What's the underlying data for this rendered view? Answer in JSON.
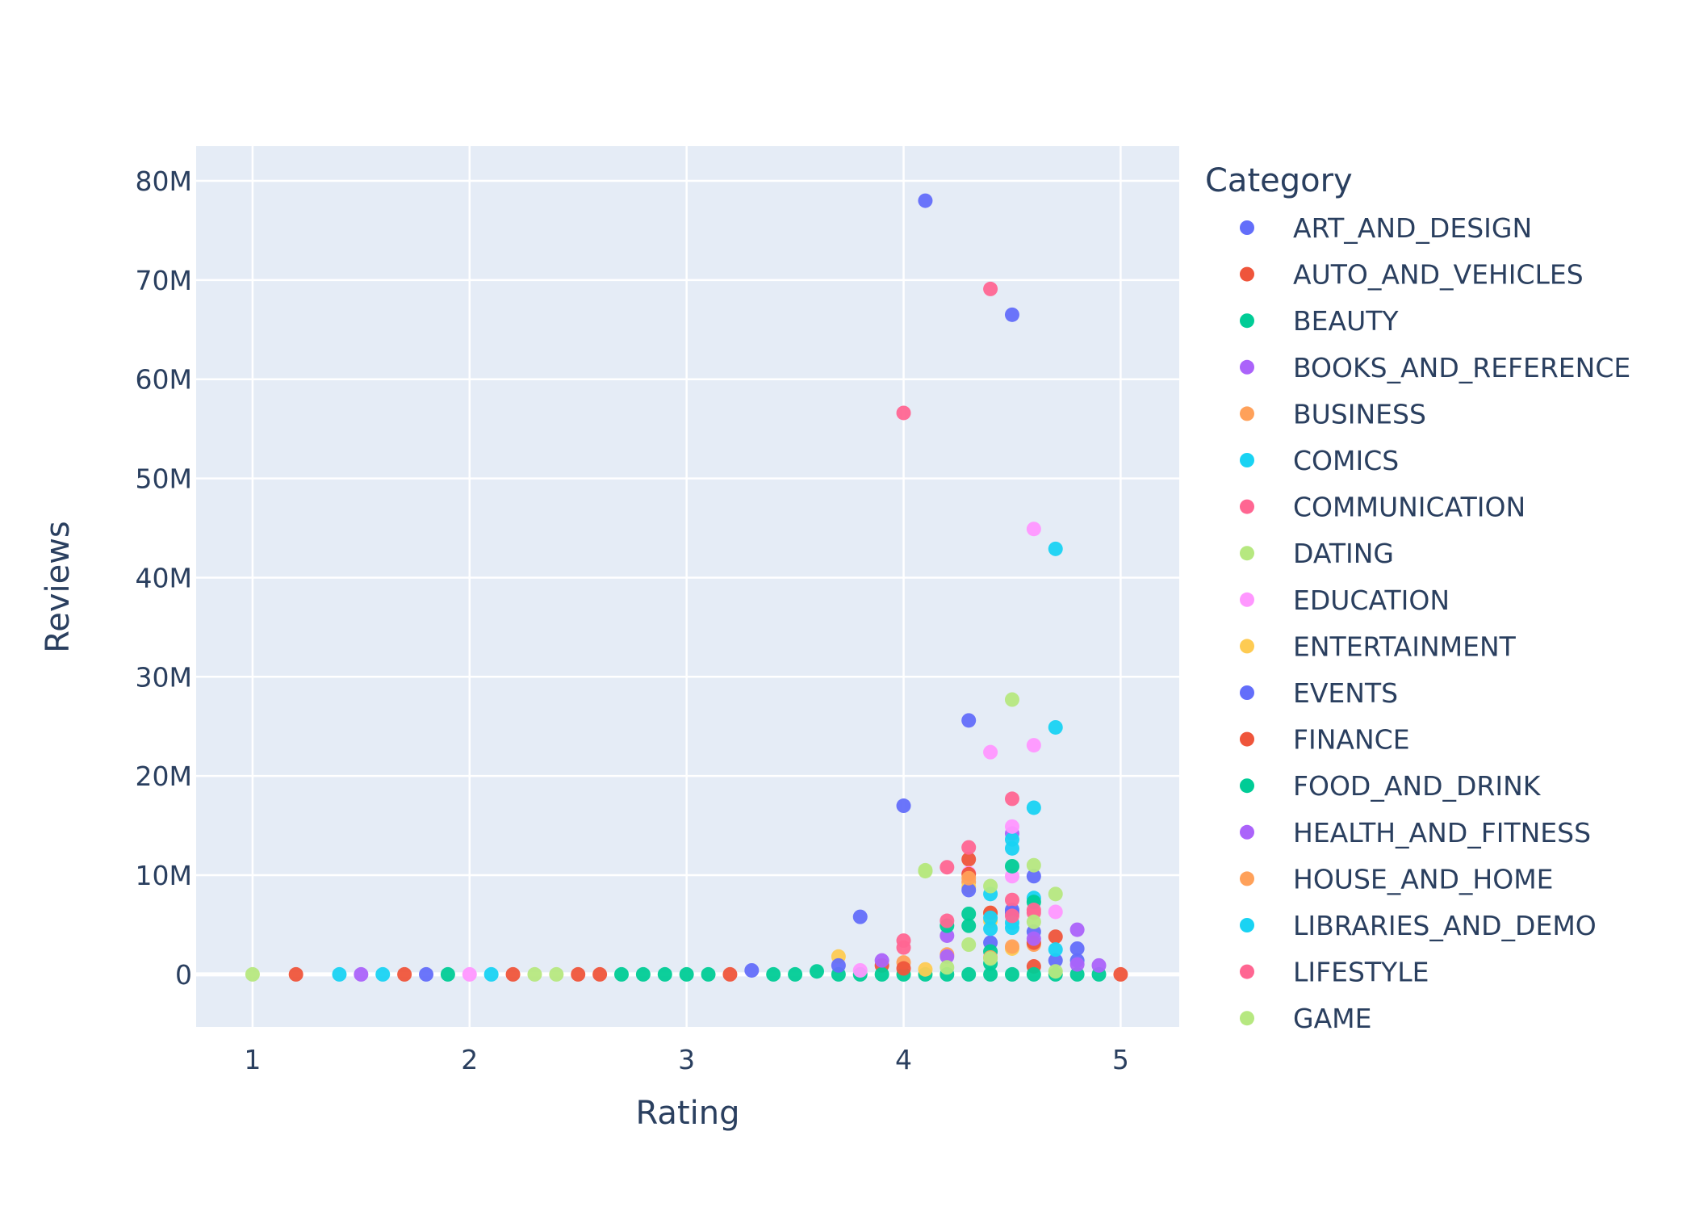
{
  "chart_data": {
    "type": "scatter",
    "xlabel": "Rating",
    "ylabel": "Reviews",
    "xlim": [
      0.74,
      5.27
    ],
    "ylim": [
      -5300000,
      83500000
    ],
    "x_ticks": [
      1,
      2,
      3,
      4,
      5
    ],
    "x_tick_labels": [
      "1",
      "2",
      "3",
      "4",
      "5"
    ],
    "y_ticks": [
      0,
      10000000,
      20000000,
      30000000,
      40000000,
      50000000,
      60000000,
      70000000,
      80000000
    ],
    "y_tick_labels": [
      "0",
      "10M",
      "20M",
      "30M",
      "40M",
      "50M",
      "60M",
      "70M",
      "80M"
    ],
    "grid": true,
    "plot_background": "#e5ecf6",
    "legend": {
      "title": "Category",
      "placement": "right"
    },
    "series": [
      {
        "name": "ART_AND_DESIGN",
        "color": "#636efa",
        "points": [
          [
            4.1,
            78000000
          ],
          [
            4.5,
            66500000
          ],
          [
            4.3,
            25600000
          ],
          [
            4.0,
            17000000
          ],
          [
            3.8,
            5800000
          ],
          [
            4.6,
            9900000
          ],
          [
            4.5,
            6500000
          ],
          [
            4.8,
            2600000
          ],
          [
            3.3,
            400000
          ],
          [
            1.8,
            0
          ],
          [
            4.4,
            3200000
          ],
          [
            4.7,
            1400000
          ]
        ]
      },
      {
        "name": "AUTO_AND_VEHICLES",
        "color": "#ef553b",
        "points": [
          [
            1.2,
            0
          ],
          [
            1.7,
            0
          ],
          [
            2.2,
            0
          ],
          [
            2.5,
            0
          ],
          [
            2.6,
            0
          ],
          [
            3.2,
            0
          ],
          [
            3.9,
            900000
          ],
          [
            4.3,
            11600000
          ],
          [
            4.7,
            3800000
          ],
          [
            5.0,
            0
          ],
          [
            4.6,
            800000
          ]
        ]
      },
      {
        "name": "BEAUTY",
        "color": "#00cc96",
        "points": [
          [
            1.9,
            0
          ],
          [
            2.7,
            0
          ],
          [
            2.8,
            0
          ],
          [
            2.9,
            0
          ],
          [
            3.0,
            0
          ],
          [
            3.1,
            0
          ],
          [
            3.4,
            0
          ],
          [
            3.5,
            0
          ],
          [
            3.6,
            300000
          ],
          [
            3.7,
            0
          ],
          [
            3.8,
            0
          ],
          [
            3.9,
            0
          ],
          [
            4.0,
            0
          ],
          [
            4.1,
            0
          ],
          [
            4.2,
            0
          ],
          [
            4.3,
            0
          ],
          [
            4.4,
            0
          ],
          [
            4.5,
            0
          ],
          [
            4.6,
            0
          ],
          [
            4.7,
            0
          ],
          [
            4.8,
            0
          ],
          [
            4.9,
            0
          ]
        ]
      },
      {
        "name": "BOOKS_AND_REFERENCE",
        "color": "#ab63fa",
        "points": [
          [
            1.5,
            0
          ],
          [
            3.9,
            1400000
          ],
          [
            4.2,
            3900000
          ],
          [
            4.5,
            14200000
          ],
          [
            4.8,
            4500000
          ],
          [
            4.9,
            900000
          ]
        ]
      },
      {
        "name": "BUSINESS",
        "color": "#ffa15a",
        "points": [
          [
            4.0,
            1200000
          ],
          [
            4.3,
            9300000
          ],
          [
            4.4,
            6200000
          ],
          [
            4.6,
            3000000
          ],
          [
            4.2,
            2000000
          ]
        ]
      },
      {
        "name": "COMICS",
        "color": "#19d3f3",
        "points": [
          [
            1.4,
            0
          ],
          [
            1.6,
            0
          ],
          [
            2.1,
            0
          ],
          [
            4.7,
            42900000
          ],
          [
            4.7,
            24900000
          ],
          [
            4.6,
            16800000
          ],
          [
            4.5,
            13600000
          ],
          [
            4.4,
            8100000
          ],
          [
            4.6,
            7700000
          ],
          [
            4.5,
            4700000
          ]
        ]
      },
      {
        "name": "COMMUNICATION",
        "color": "#ff6692",
        "points": [
          [
            4.4,
            69100000
          ],
          [
            4.0,
            56600000
          ],
          [
            4.5,
            17700000
          ],
          [
            4.3,
            12800000
          ],
          [
            4.2,
            10800000
          ],
          [
            4.0,
            3400000
          ],
          [
            4.5,
            7500000
          ],
          [
            4.6,
            6200000
          ]
        ]
      },
      {
        "name": "DATING",
        "color": "#b6e880",
        "points": [
          [
            1.0,
            0
          ],
          [
            2.3,
            0
          ],
          [
            2.4,
            0
          ],
          [
            4.5,
            27700000
          ],
          [
            4.1,
            10500000
          ],
          [
            4.6,
            11000000
          ],
          [
            4.7,
            8100000
          ],
          [
            4.4,
            8900000
          ],
          [
            4.3,
            3000000
          ]
        ]
      },
      {
        "name": "EDUCATION",
        "color": "#ff97ff",
        "points": [
          [
            2.0,
            0
          ],
          [
            4.6,
            44900000
          ],
          [
            4.6,
            23100000
          ],
          [
            4.4,
            22400000
          ],
          [
            4.5,
            14900000
          ],
          [
            4.5,
            9900000
          ],
          [
            4.7,
            6300000
          ],
          [
            4.3,
            10200000
          ],
          [
            3.8,
            400000
          ]
        ]
      },
      {
        "name": "ENTERTAINMENT",
        "color": "#fecb52",
        "points": [
          [
            3.7,
            1800000
          ],
          [
            4.3,
            8800000
          ],
          [
            4.4,
            5400000
          ],
          [
            4.5,
            2600000
          ],
          [
            4.1,
            500000
          ]
        ]
      },
      {
        "name": "EVENTS",
        "color": "#636efa",
        "points": [
          [
            3.7,
            900000
          ],
          [
            4.3,
            8500000
          ],
          [
            4.5,
            6200000
          ],
          [
            4.6,
            4300000
          ],
          [
            4.8,
            1400000
          ]
        ]
      },
      {
        "name": "FINANCE",
        "color": "#ef553b",
        "points": [
          [
            4.3,
            10100000
          ],
          [
            4.4,
            6200000
          ],
          [
            4.6,
            3200000
          ],
          [
            4.0,
            600000
          ]
        ]
      },
      {
        "name": "FOOD_AND_DRINK",
        "color": "#00cc96",
        "points": [
          [
            4.2,
            4900000
          ],
          [
            4.3,
            6100000
          ],
          [
            4.5,
            10900000
          ],
          [
            4.6,
            7300000
          ],
          [
            4.4,
            2300000
          ],
          [
            4.3,
            4900000
          ],
          [
            4.4,
            1100000
          ]
        ]
      },
      {
        "name": "HEALTH_AND_FITNESS",
        "color": "#ab63fa",
        "points": [
          [
            4.6,
            3600000
          ],
          [
            4.2,
            1800000
          ],
          [
            4.8,
            1000000
          ]
        ]
      },
      {
        "name": "HOUSE_AND_HOME",
        "color": "#ffa15a",
        "points": [
          [
            4.3,
            9700000
          ],
          [
            4.5,
            2800000
          ],
          [
            4.4,
            1700000
          ]
        ]
      },
      {
        "name": "LIBRARIES_AND_DEMO",
        "color": "#19d3f3",
        "points": [
          [
            4.5,
            12700000
          ],
          [
            4.4,
            5700000
          ],
          [
            4.4,
            4600000
          ],
          [
            4.7,
            2500000
          ],
          [
            4.5,
            5200000
          ]
        ]
      },
      {
        "name": "LIFESTYLE",
        "color": "#ff6692",
        "points": [
          [
            4.2,
            5400000
          ],
          [
            4.0,
            2700000
          ],
          [
            4.6,
            6500000
          ],
          [
            4.5,
            5900000
          ]
        ]
      },
      {
        "name": "GAME",
        "color": "#b6e880",
        "points": [
          [
            4.1,
            10400000
          ],
          [
            4.6,
            5300000
          ],
          [
            4.4,
            1600000
          ],
          [
            4.2,
            700000
          ],
          [
            4.7,
            300000
          ]
        ]
      }
    ]
  }
}
